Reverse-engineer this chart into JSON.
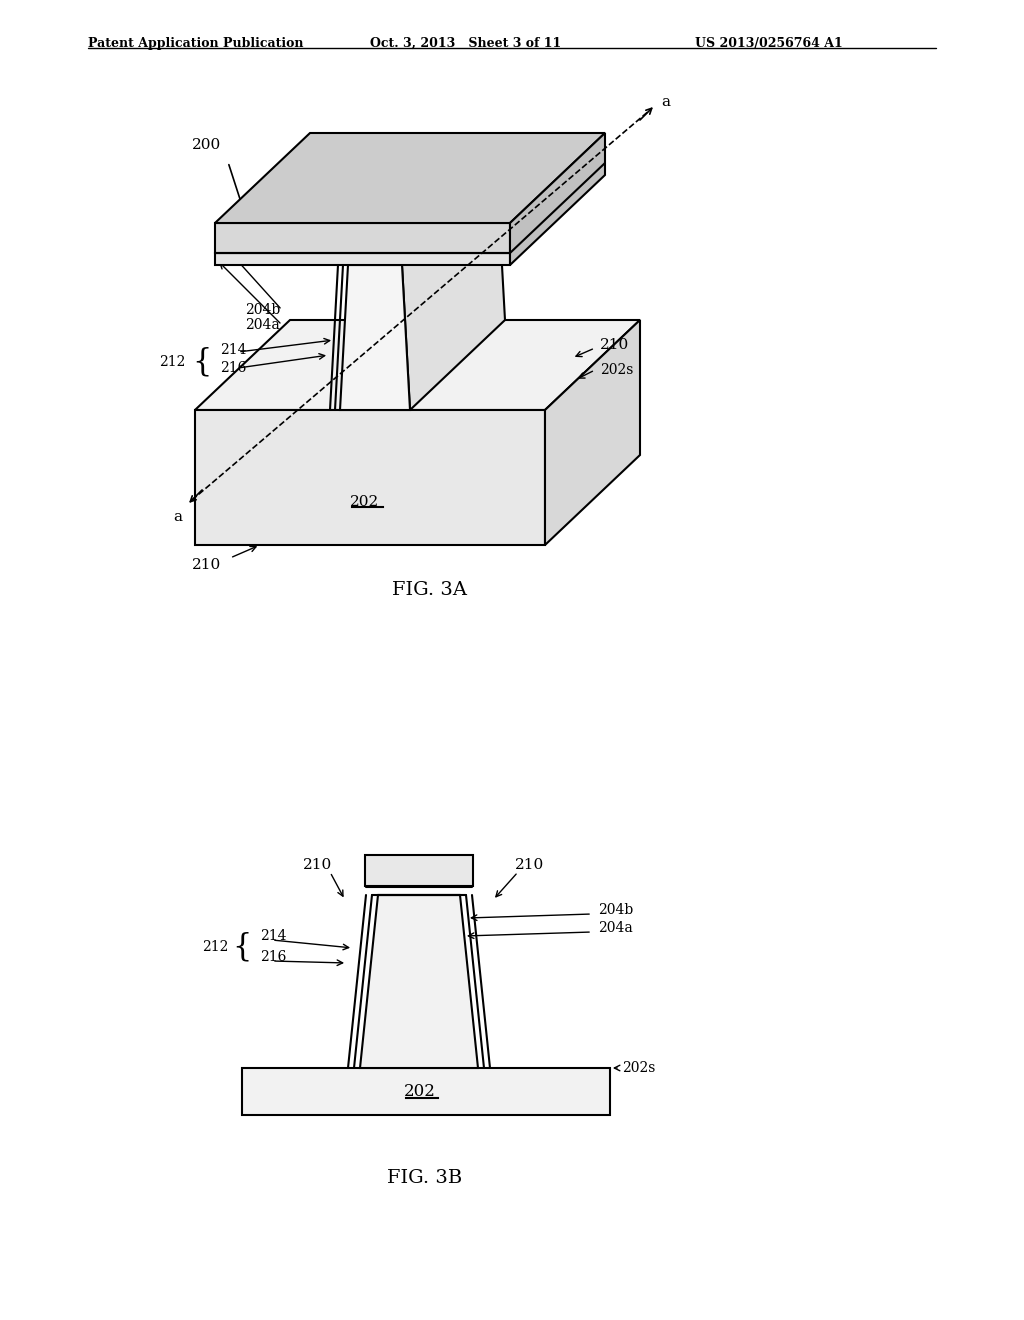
{
  "bg_color": "#ffffff",
  "line_color": "#000000",
  "header_left": "Patent Application Publication",
  "header_mid": "Oct. 3, 2013   Sheet 3 of 11",
  "header_right": "US 2013/0256764 A1",
  "fig3a_label": "FIG. 3A",
  "fig3b_label": "FIG. 3B",
  "label_200": "200",
  "label_202": "202",
  "label_202s": "202s",
  "label_204a": "204a",
  "label_204b": "204b",
  "label_210": "210",
  "label_212": "212",
  "label_214": "214",
  "label_216": "216",
  "label_a": "a"
}
